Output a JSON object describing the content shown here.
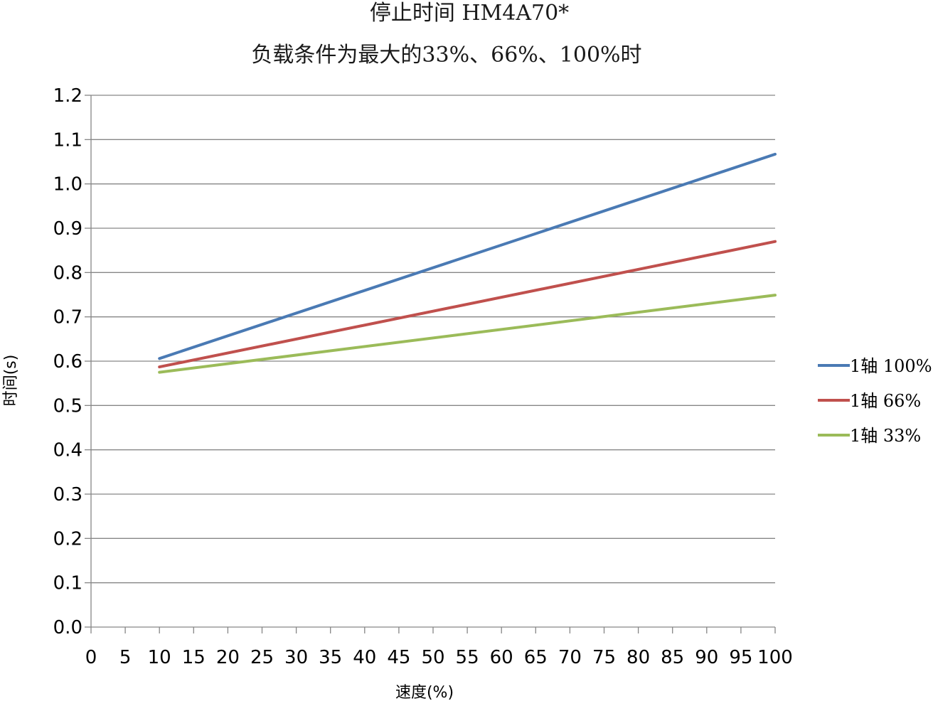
{
  "chart_data": {
    "type": "line",
    "title": "停止时间 HM4A70*",
    "subtitle": "负载条件为最大的33%、66%、100%时",
    "xlabel": "速度(%)",
    "ylabel": "时间(s)",
    "xlim": [
      0,
      100
    ],
    "ylim": [
      0,
      1.2
    ],
    "x_ticks": [
      "0",
      "5",
      "10",
      "15",
      "20",
      "25",
      "30",
      "35",
      "40",
      "45",
      "50",
      "55",
      "60",
      "65",
      "70",
      "75",
      "80",
      "85",
      "90",
      "95",
      "100"
    ],
    "y_ticks": [
      "0.0",
      "0.1",
      "0.2",
      "0.3",
      "0.4",
      "0.5",
      "0.6",
      "0.7",
      "0.8",
      "0.9",
      "1.0",
      "1.1",
      "1.2"
    ],
    "grid": true,
    "legend_position": "right",
    "series": [
      {
        "name": "1轴 100%",
        "color": "#4a7ab4",
        "x": [
          10,
          100
        ],
        "y": [
          0.606,
          1.067
        ]
      },
      {
        "name": "1轴 66%",
        "color": "#c0504d",
        "x": [
          10,
          100
        ],
        "y": [
          0.587,
          0.87
        ]
      },
      {
        "name": "1轴 33%",
        "color": "#9bbb59",
        "x": [
          10,
          100
        ],
        "y": [
          0.575,
          0.749
        ]
      }
    ]
  }
}
